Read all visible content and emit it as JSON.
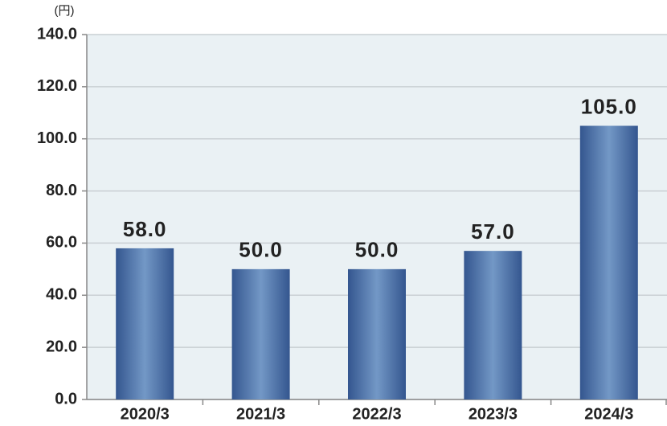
{
  "chart_data": {
    "type": "bar",
    "y_label": "(円)",
    "categories": [
      "2020/3",
      "2021/3",
      "2022/3",
      "2023/3",
      "2024/3"
    ],
    "values": [
      58,
      50,
      50,
      57,
      105
    ],
    "value_labels": [
      "58.0",
      "50.0",
      "50.0",
      "57.0",
      "105.0"
    ],
    "color": "#34568f",
    "ylim": [
      0,
      140
    ],
    "yticks": [
      {
        "value": 0,
        "label": "0.0"
      },
      {
        "value": 20,
        "label": "20.0"
      },
      {
        "value": 40,
        "label": "40.0"
      },
      {
        "value": 60,
        "label": "60.0"
      },
      {
        "value": 80,
        "label": "80.0"
      },
      {
        "value": 100,
        "label": "100.0"
      },
      {
        "value": 120,
        "label": "120.0"
      },
      {
        "value": 140,
        "label": "140.0"
      }
    ],
    "grid": true
  }
}
